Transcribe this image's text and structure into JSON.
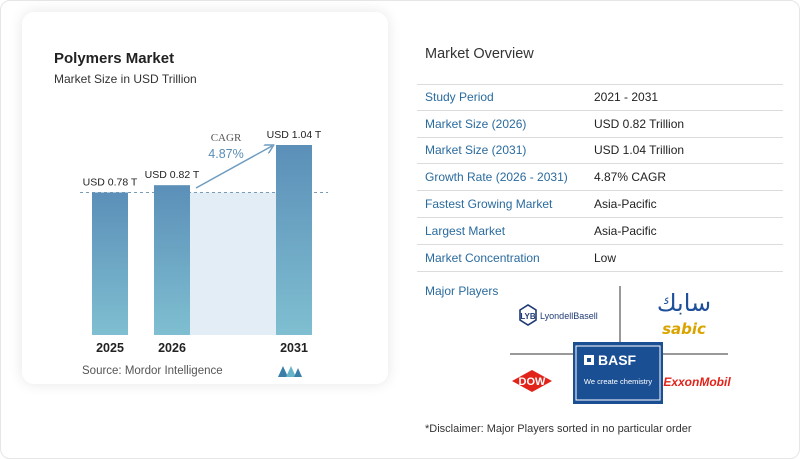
{
  "chart_data": {
    "type": "bar",
    "title": "Polymers Market",
    "subtitle": "Market Size in USD Trillion",
    "categories": [
      "2025",
      "2026",
      "2031"
    ],
    "values": [
      0.78,
      0.82,
      1.04
    ],
    "data_labels": [
      "USD 0.78 T",
      "USD 0.82 T",
      "USD 1.04 T"
    ],
    "cagr_label": "CAGR",
    "cagr_value": "4.87%",
    "colors": {
      "bar_top": "#5b8fb8",
      "bar_bottom": "#7fbfd1",
      "band": "#e2edf5",
      "arrow": "#6f9cc0"
    }
  },
  "source": "Source:  Mordor Intelligence",
  "overview": {
    "title": "Market Overview",
    "rows": [
      {
        "label": "Study Period",
        "value": "2021 - 2031"
      },
      {
        "label": "Market Size (2026)",
        "value": "USD 0.82 Trillion"
      },
      {
        "label": "Market Size (2031)",
        "value": "USD 1.04 Trillion"
      },
      {
        "label": "Growth Rate (2026 - 2031)",
        "value": "4.87% CAGR"
      },
      {
        "label": "Fastest Growing Market",
        "value": "Asia-Pacific"
      },
      {
        "label": "Largest Market",
        "value": "Asia-Pacific"
      },
      {
        "label": "Market Concentration",
        "value": "Low"
      }
    ]
  },
  "players": {
    "title": "Major Players",
    "logos": [
      "LyondellBasell",
      "SABIC",
      "Dow",
      "BASF",
      "ExxonMobil"
    ],
    "lyb_mark": "LYB",
    "lyb_name": "LyondellBasell",
    "sabic_arabic": "سابك",
    "sabic_latin": "sabic",
    "dow_text": "DOW",
    "basf_text": "BASF",
    "basf_tagline": "We create chemistry",
    "exxon_text": "ExxonMobil"
  },
  "disclaimer": "*Disclaimer: Major Players sorted in no particular order"
}
